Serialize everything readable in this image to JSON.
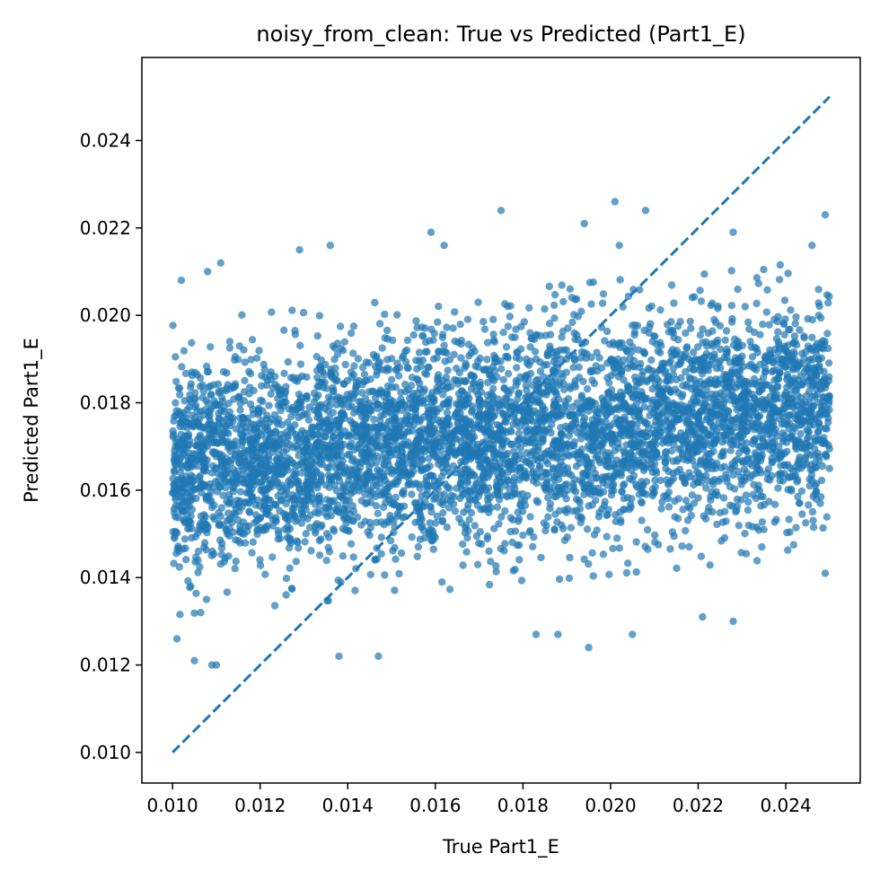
{
  "chart_data": {
    "type": "scatter",
    "title": "noisy_from_clean: True vs Predicted (Part1_E)",
    "xlabel": "True Part1_E",
    "ylabel": "Predicted Part1_E",
    "xlim": [
      0.0093,
      0.0257
    ],
    "ylim": [
      0.0093,
      0.0259
    ],
    "x_ticks": [
      "0.010",
      "0.012",
      "0.014",
      "0.016",
      "0.018",
      "0.020",
      "0.022",
      "0.024"
    ],
    "y_ticks": [
      "0.010",
      "0.012",
      "0.014",
      "0.016",
      "0.018",
      "0.020",
      "0.022",
      "0.024"
    ],
    "grid": false,
    "point_color": "#1f77b4",
    "point_alpha": 0.7,
    "series": [
      {
        "kind": "scatter",
        "description_stats": {
          "x_range": [
            0.01,
            0.025
          ],
          "y_center_at_x_min": 0.0165,
          "y_center_at_x_max": 0.0179,
          "y_spread_sd": 0.0012
        },
        "outliers": [
          {
            "x": 0.0175,
            "y": 0.0224
          },
          {
            "x": 0.0201,
            "y": 0.0226
          },
          {
            "x": 0.0208,
            "y": 0.0224
          },
          {
            "x": 0.0249,
            "y": 0.0223
          },
          {
            "x": 0.0159,
            "y": 0.0219
          },
          {
            "x": 0.0194,
            "y": 0.0221
          },
          {
            "x": 0.0202,
            "y": 0.0216
          },
          {
            "x": 0.0228,
            "y": 0.0219
          },
          {
            "x": 0.0136,
            "y": 0.0216
          },
          {
            "x": 0.0162,
            "y": 0.0216
          },
          {
            "x": 0.0129,
            "y": 0.0215
          },
          {
            "x": 0.0108,
            "y": 0.021
          },
          {
            "x": 0.0111,
            "y": 0.0212
          },
          {
            "x": 0.0102,
            "y": 0.0208
          },
          {
            "x": 0.0246,
            "y": 0.0216
          },
          {
            "x": 0.0109,
            "y": 0.012
          },
          {
            "x": 0.011,
            "y": 0.012
          },
          {
            "x": 0.0105,
            "y": 0.0121
          },
          {
            "x": 0.0147,
            "y": 0.0122
          },
          {
            "x": 0.0138,
            "y": 0.0122
          },
          {
            "x": 0.0195,
            "y": 0.0124
          },
          {
            "x": 0.0205,
            "y": 0.0127
          },
          {
            "x": 0.0183,
            "y": 0.0127
          },
          {
            "x": 0.0188,
            "y": 0.0127
          },
          {
            "x": 0.0228,
            "y": 0.013
          },
          {
            "x": 0.0221,
            "y": 0.0131
          },
          {
            "x": 0.0101,
            "y": 0.0126
          },
          {
            "x": 0.0249,
            "y": 0.0141
          }
        ]
      },
      {
        "kind": "reference_line",
        "style": "dashed",
        "x": [
          0.01,
          0.025
        ],
        "y": [
          0.01,
          0.025
        ]
      }
    ]
  }
}
